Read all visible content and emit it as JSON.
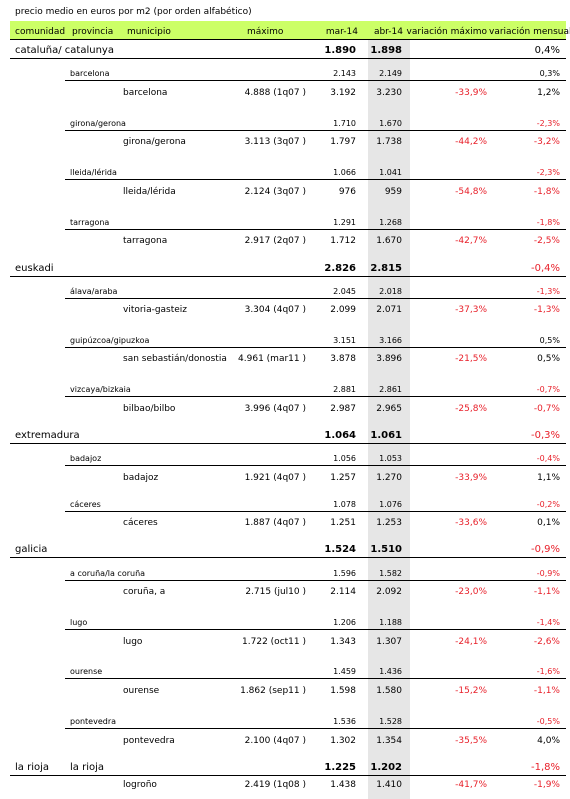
{
  "title": "precio medio en euros por m2 (por orden alfabético)",
  "headers": {
    "comunidad": "comunidad",
    "provincia": "provincia",
    "municipio": "municipio",
    "maximo": "máximo",
    "mar14": "mar-14",
    "abr14": "abr-14",
    "var_max": "variación máximo",
    "var_mens": "variación mensual"
  },
  "rows": [
    {
      "type": "comunidad",
      "label": "cataluña/ catalunya",
      "mar": "1.890",
      "abr": "1.898",
      "vmen": "0,4%"
    },
    {
      "type": "provincia",
      "label": "barcelona",
      "mar": "2.143",
      "abr": "2.149",
      "vmen": "0,3%"
    },
    {
      "type": "municipio",
      "label": "barcelona",
      "max": "4.888 (1q07 )",
      "mar": "3.192",
      "abr": "3.230",
      "vmax": "-33,9%",
      "vmen": "1,2%"
    },
    {
      "type": "provincia",
      "label": "girona/gerona",
      "mar": "1.710",
      "abr": "1.670",
      "vmen": "-2,3%"
    },
    {
      "type": "municipio",
      "label": "girona/gerona",
      "max": "3.113 (3q07 )",
      "mar": "1.797",
      "abr": "1.738",
      "vmax": "-44,2%",
      "vmen": "-3,2%"
    },
    {
      "type": "provincia",
      "label": "lleida/lérida",
      "mar": "1.066",
      "abr": "1.041",
      "vmen": "-2,3%"
    },
    {
      "type": "municipio",
      "label": "lleida/lérida",
      "max": "2.124 (3q07 )",
      "mar": "976",
      "abr": "959",
      "vmax": "-54,8%",
      "vmen": "-1,8%"
    },
    {
      "type": "provincia",
      "label": "tarragona",
      "mar": "1.291",
      "abr": "1.268",
      "vmen": "-1,8%"
    },
    {
      "type": "municipio",
      "label": "tarragona",
      "max": "2.917 (2q07 )",
      "mar": "1.712",
      "abr": "1.670",
      "vmax": "-42,7%",
      "vmen": "-2,5%"
    },
    {
      "type": "comunidad",
      "label": "euskadi",
      "mar": "2.826",
      "abr": "2.815",
      "vmen": "-0,4%"
    },
    {
      "type": "provincia",
      "label": "álava/araba",
      "mar": "2.045",
      "abr": "2.018",
      "vmen": "-1,3%"
    },
    {
      "type": "municipio",
      "label": "vitoria-gasteiz",
      "max": "3.304 (4q07 )",
      "mar": "2.099",
      "abr": "2.071",
      "vmax": "-37,3%",
      "vmen": "-1,3%"
    },
    {
      "type": "provincia",
      "label": "guipúzcoa/gipuzkoa",
      "mar": "3.151",
      "abr": "3.166",
      "vmen": "0,5%"
    },
    {
      "type": "municipio",
      "label": "san sebastián/donostia",
      "max": "4.961 (mar11 )",
      "mar": "3.878",
      "abr": "3.896",
      "vmax": "-21,5%",
      "vmen": "0,5%"
    },
    {
      "type": "provincia",
      "label": "vizcaya/bizkaia",
      "mar": "2.881",
      "abr": "2.861",
      "vmen": "-0,7%"
    },
    {
      "type": "municipio",
      "label": "bilbao/bilbo",
      "max": "3.996 (4q07 )",
      "mar": "2.987",
      "abr": "2.965",
      "vmax": "-25,8%",
      "vmen": "-0,7%"
    },
    {
      "type": "comunidad",
      "label": "extremadura",
      "mar": "1.064",
      "abr": "1.061",
      "vmen": "-0,3%"
    },
    {
      "type": "provincia",
      "label": "badajoz",
      "mar": "1.056",
      "abr": "1.053",
      "vmen": "-0,4%"
    },
    {
      "type": "municipio",
      "label": "badajoz",
      "max": "1.921 (4q07 )",
      "mar": "1.257",
      "abr": "1.270",
      "vmax": "-33,9%",
      "vmen": "1,1%"
    },
    {
      "type": "provincia",
      "label": "cáceres",
      "mar": "1.078",
      "abr": "1.076",
      "vmen": "-0,2%"
    },
    {
      "type": "municipio",
      "label": "cáceres",
      "max": "1.887 (4q07 )",
      "mar": "1.251",
      "abr": "1.253",
      "vmax": "-33,6%",
      "vmen": "0,1%"
    },
    {
      "type": "comunidad",
      "label": "galicia",
      "mar": "1.524",
      "abr": "1.510",
      "vmen": "-0,9%"
    },
    {
      "type": "provincia",
      "label": "a coruña/la coruña",
      "mar": "1.596",
      "abr": "1.582",
      "vmen": "-0,9%"
    },
    {
      "type": "municipio",
      "label": "coruña, a",
      "max": "2.715 (jul10 )",
      "mar": "2.114",
      "abr": "2.092",
      "vmax": "-23,0%",
      "vmen": "-1,1%"
    },
    {
      "type": "provincia",
      "label": "lugo",
      "mar": "1.206",
      "abr": "1.188",
      "vmen": "-1,4%"
    },
    {
      "type": "municipio",
      "label": "lugo",
      "max": "1.722 (oct11 )",
      "mar": "1.343",
      "abr": "1.307",
      "vmax": "-24,1%",
      "vmen": "-2,6%"
    },
    {
      "type": "provincia",
      "label": "ourense",
      "mar": "1.459",
      "abr": "1.436",
      "vmen": "-1,6%"
    },
    {
      "type": "municipio",
      "label": "ourense",
      "max": "1.862 (sep11 )",
      "mar": "1.598",
      "abr": "1.580",
      "vmax": "-15,2%",
      "vmen": "-1,1%"
    },
    {
      "type": "provincia",
      "label": "pontevedra",
      "mar": "1.536",
      "abr": "1.528",
      "vmen": "-0,5%"
    },
    {
      "type": "municipio",
      "label": "pontevedra",
      "max": "2.100 (4q07 )",
      "mar": "1.302",
      "abr": "1.354",
      "vmax": "-35,5%",
      "vmen": "4,0%"
    },
    {
      "type": "comunidad",
      "label": "la rioja",
      "label2": "la rioja",
      "mar": "1.225",
      "abr": "1.202",
      "vmen": "-1,8%"
    },
    {
      "type": "municipio",
      "label": "logroño",
      "max": "2.419 (1q08 )",
      "mar": "1.438",
      "abr": "1.410",
      "vmax": "-41,7%",
      "vmen": "-1,9%"
    }
  ]
}
